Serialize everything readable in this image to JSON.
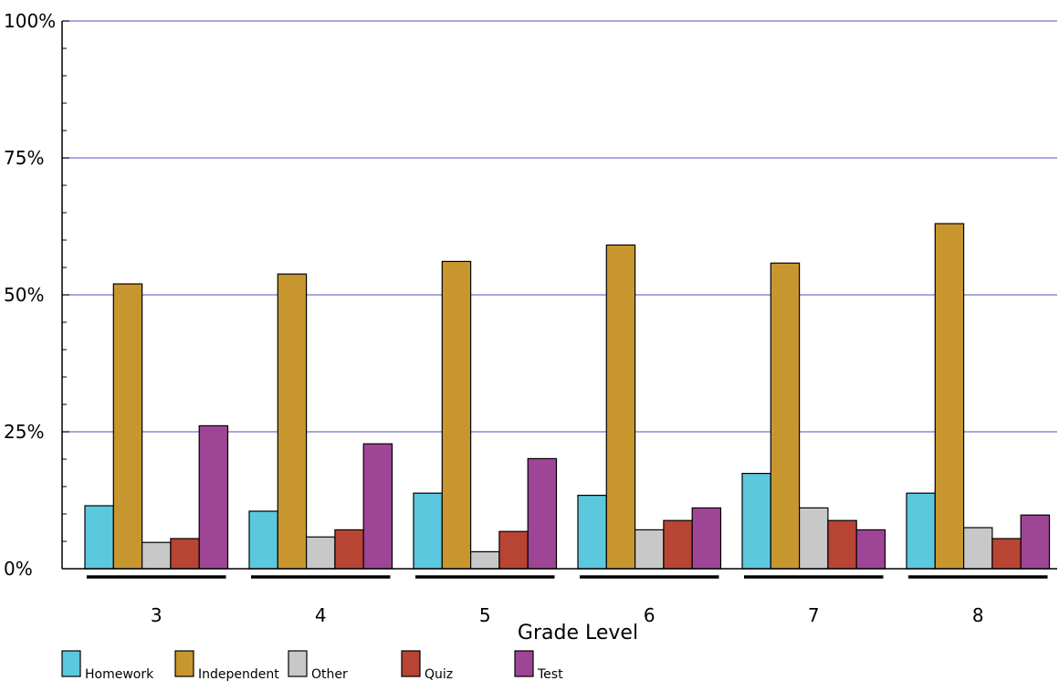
{
  "chart_data": {
    "type": "bar",
    "xlabel": "Grade Level",
    "ylabel": "",
    "ylim": [
      0,
      100
    ],
    "yticks": [
      0,
      25,
      50,
      75,
      100
    ],
    "ytick_labels": [
      "0%",
      "25%",
      "50%",
      "75%",
      "100%"
    ],
    "categories": [
      "3",
      "4",
      "5",
      "6",
      "7",
      "8"
    ],
    "grid": true,
    "legend_position": "bottom",
    "series": [
      {
        "name": "Homework",
        "color": "#5bc8dd",
        "values": [
          11.5,
          10.5,
          13.8,
          13.4,
          17.4,
          13.8
        ]
      },
      {
        "name": "Independent",
        "color": "#c8962f",
        "values": [
          52,
          53.8,
          56.1,
          59.1,
          55.8,
          63
        ]
      },
      {
        "name": "Other",
        "color": "#c8c8c8",
        "values": [
          4.8,
          5.8,
          3.1,
          7.1,
          11.1,
          7.5
        ]
      },
      {
        "name": "Quiz",
        "color": "#b84434",
        "values": [
          5.5,
          7.1,
          6.8,
          8.8,
          8.8,
          5.5
        ]
      },
      {
        "name": "Test",
        "color": "#9e4595",
        "values": [
          26.1,
          22.8,
          20.1,
          11.1,
          7.1,
          9.8
        ]
      }
    ]
  }
}
